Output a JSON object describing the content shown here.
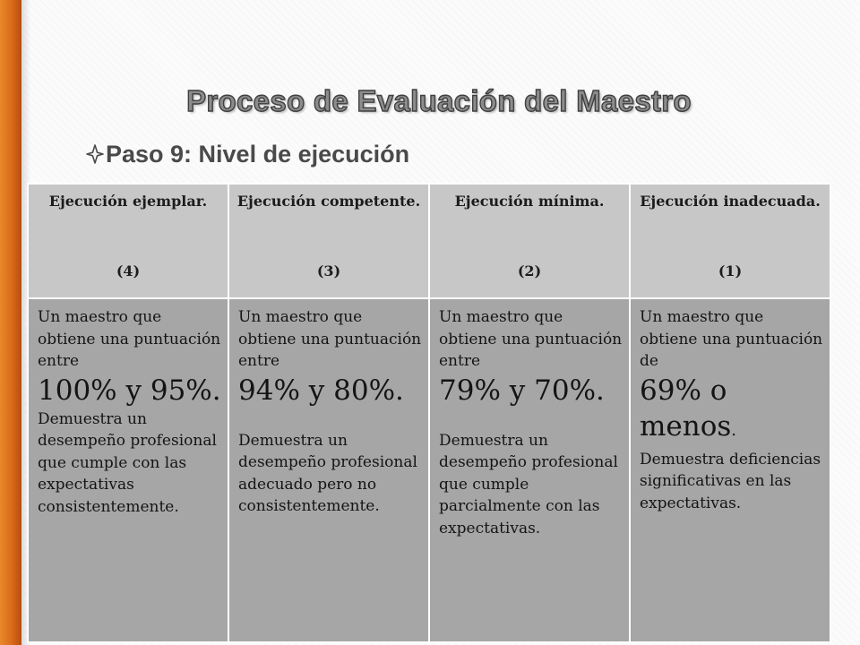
{
  "slide": {
    "title": "Proceso de Evaluación del Maestro",
    "step": "Paso 9: Nivel de ejecución",
    "step_icon": "four-point-star-outline-icon",
    "accent_color": "#d96a1a"
  },
  "table": {
    "columns": [
      {
        "name": "Ejecución ejemplar.",
        "level": "(4)"
      },
      {
        "name": "Ejecución competente.",
        "level": "(3)"
      },
      {
        "name": "Ejecución mínima.",
        "level": "(2)"
      },
      {
        "name": "Ejecución inadecuada.",
        "level": "(1)"
      }
    ],
    "cells": [
      {
        "intro": "Un maestro que obtiene una puntuación entre",
        "range": "100% y 95%.",
        "description": "Demuestra un desempeño profesional que cumple con las expectativas consistentemente."
      },
      {
        "intro": "Un maestro que obtiene una puntuación entre",
        "range": "94% y 80%.",
        "description": "Demuestra un desempeño profesional adecuado pero no consistentemente."
      },
      {
        "intro": "Un maestro que obtiene una puntuación entre",
        "range": "79% y 70%.",
        "description": "Demuestra un desempeño profesional que cumple parcialmente con las expectativas."
      },
      {
        "intro": "Un maestro que obtiene una puntuación de",
        "range": "69% o menos",
        "range_suffix": ".",
        "description": "Demuestra deficiencias significativas en las expectativas."
      }
    ]
  }
}
